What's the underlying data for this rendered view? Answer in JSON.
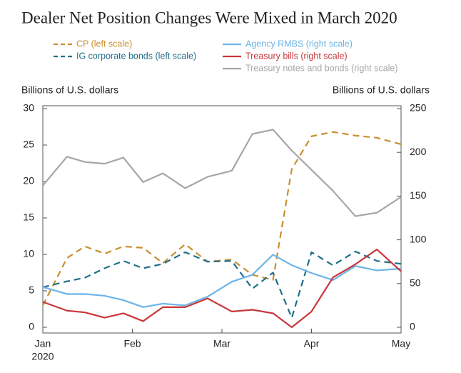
{
  "chart_data": {
    "type": "line",
    "title": "Dealer Net Position Changes Were Mixed in March 2020",
    "y_label": "Billions of U.S. dollars",
    "y2_label": "Billions of U.S. dollars",
    "x": [
      0,
      0.27,
      0.47,
      0.69,
      0.9,
      1.12,
      1.34,
      1.59,
      1.84,
      2.11,
      2.34,
      2.57,
      2.78,
      3.0,
      3.24,
      3.49,
      3.73,
      4.0
    ],
    "xlim": [
      0,
      4
    ],
    "xticks": [
      {
        "value": 0,
        "label": "Jan"
      },
      {
        "value": 1,
        "label": "Feb"
      },
      {
        "value": 2,
        "label": "Mar"
      },
      {
        "value": 3,
        "label": "Apr"
      },
      {
        "value": 4,
        "label": "May"
      }
    ],
    "year_label": "2020",
    "ylim": [
      0,
      30
    ],
    "yticks": [
      0,
      5,
      10,
      15,
      20,
      25,
      30
    ],
    "y2lim": [
      0,
      250
    ],
    "y2ticks": [
      0,
      50,
      100,
      150,
      200,
      250
    ],
    "series": [
      {
        "name": "CP (left scale)",
        "color": "#c8902e",
        "style": "dashed",
        "axis": "y",
        "values": [
          3,
          9.5,
          11.1,
          10.1,
          11.1,
          10.9,
          8.8,
          11.4,
          9,
          9.3,
          7.2,
          6.5,
          21.7,
          26.2,
          26.8,
          26.3,
          26,
          25.1
        ]
      },
      {
        "name": "IG corporate bonds (left scale)",
        "color": "#1f6f8b",
        "style": "dashed",
        "axis": "y",
        "values": [
          5.5,
          6.3,
          6.8,
          8.1,
          9.1,
          8.1,
          8.7,
          10.3,
          9,
          9.1,
          5.3,
          7.5,
          1.3,
          10.3,
          8.5,
          10.4,
          9.1,
          8.7
        ]
      },
      {
        "name": "Agency RMBS (right scale)",
        "color": "#6cb4e8",
        "style": "solid",
        "axis": "y2",
        "values": [
          46,
          38,
          38,
          36,
          31,
          23,
          27,
          25,
          35,
          52,
          60,
          83,
          71,
          62,
          54,
          70,
          65,
          67
        ]
      },
      {
        "name": "Treasury bills (right scale)",
        "color": "#c8373b",
        "style": "solid",
        "axis": "y2",
        "values": [
          29,
          19,
          17,
          11,
          16,
          7,
          23,
          23,
          33,
          18,
          20,
          16,
          0,
          18,
          57,
          72,
          89,
          64
        ]
      },
      {
        "name": "Treasury notes and bonds (right scale)",
        "color": "#a6a6a6",
        "style": "solid",
        "axis": "y2",
        "values": [
          162,
          195,
          189,
          187,
          194,
          166,
          176,
          159,
          172,
          179,
          221,
          226,
          202,
          180,
          156,
          127,
          131,
          149
        ]
      }
    ]
  }
}
